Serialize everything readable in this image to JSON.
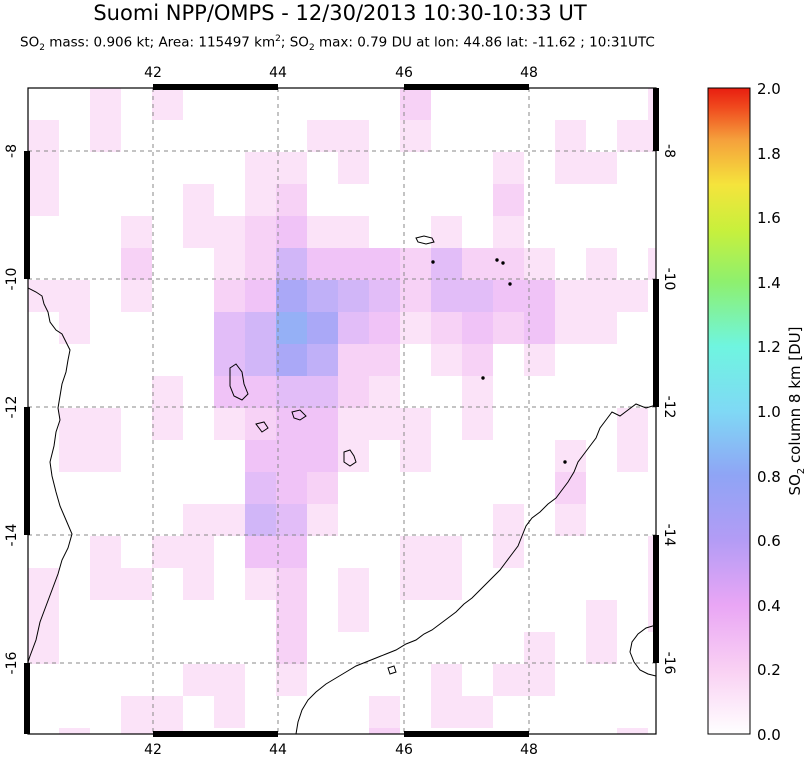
{
  "title": "Suomi NPP/OMPS - 12/30/2013 10:30-10:33 UT",
  "subtitle": {
    "p1": "SO",
    "p1sub": "2",
    "p2": " mass: 0.906 kt; Area: 115497 km",
    "p2sup": "2",
    "p3": "; SO",
    "p3sub": "2",
    "p4": " max: 0.79 DU at lon: 44.86 lat: -11.62 ; 10:31UTC"
  },
  "map": {
    "lon_ticks": [
      "42",
      "44",
      "46",
      "48"
    ],
    "lat_ticks": [
      "-8",
      "-10",
      "-12",
      "-14",
      "-16"
    ],
    "lon_range": [
      40,
      50
    ],
    "lat_range": [
      -17.2,
      -6.9
    ],
    "coastline_color": "#000000",
    "gridline": "dashed gray"
  },
  "colorbar": {
    "ticks": [
      "2.0",
      "1.8",
      "1.6",
      "1.4",
      "1.2",
      "1.0",
      "0.8",
      "0.6",
      "0.4",
      "0.2",
      "0.0"
    ],
    "label_pre": "SO",
    "label_sub": "2",
    "label_post": " column 8 km [DU]",
    "colors": [
      "#ffffff",
      "#f9d0f3",
      "#e9a6f5",
      "#b39cf5",
      "#8fa4f5",
      "#7fd9f5",
      "#6ff5e0",
      "#8ef06e",
      "#c8f03c",
      "#f5e43c",
      "#f5a03c",
      "#f04a1e",
      "#e81e10"
    ]
  }
}
